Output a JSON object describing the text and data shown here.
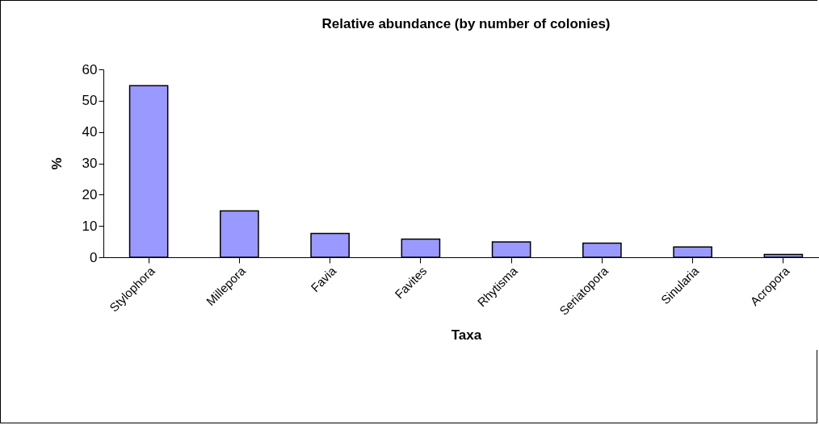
{
  "chart_data": {
    "type": "bar",
    "title": "Relative abundance (by number of colonies)",
    "xlabel": "Taxa",
    "ylabel": "%",
    "categories": [
      "Stylophora",
      "Millepora",
      "Favia",
      "Favites",
      "Rhytisma",
      "Seriatopora",
      "Sinularia",
      "Acropora"
    ],
    "values": [
      54.8,
      14.8,
      7.6,
      5.8,
      4.9,
      4.5,
      3.3,
      0.9
    ],
    "color": "#9999ff",
    "ylim": [
      0,
      60
    ],
    "yticks": [
      0,
      10,
      20,
      30,
      40,
      50,
      60
    ],
    "grid": false,
    "legend": false
  }
}
